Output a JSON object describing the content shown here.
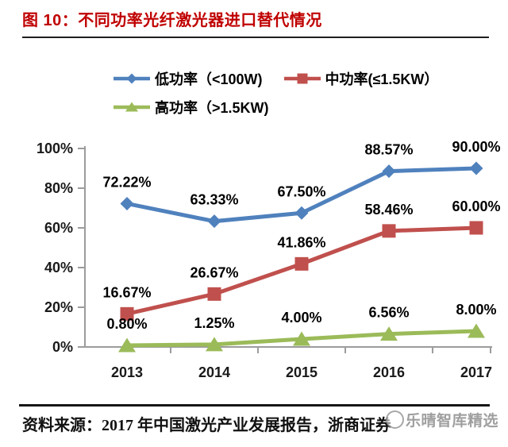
{
  "title": "图 10：不同功率光纤激光器进口替代情况",
  "source": "资料来源：2017 年中国激光产业发展报告，浙商证券",
  "watermark": "乐晴智库精选",
  "colors": {
    "title": "#C00000",
    "axis": "#9C9C9C",
    "data_label": "#000000",
    "watermark": "#8f8f8f"
  },
  "chart_data": {
    "type": "line",
    "title": "不同功率光纤激光器进口替代情况",
    "categories": [
      "2013",
      "2014",
      "2015",
      "2016",
      "2017"
    ],
    "series": [
      {
        "name": "低功率（<100W)",
        "marker": "diamond",
        "color": "#4F81BD",
        "values": [
          72.22,
          63.33,
          67.5,
          88.57,
          90.0
        ],
        "labels": [
          "72.22%",
          "63.33%",
          "67.50%",
          "88.57%",
          "90.00%"
        ]
      },
      {
        "name": "中功率(≤1.5KW）",
        "marker": "square",
        "color": "#C0504D",
        "values": [
          16.67,
          26.67,
          41.86,
          58.46,
          60.0
        ],
        "labels": [
          "16.67%",
          "26.67%",
          "41.86%",
          "58.46%",
          "60.00%"
        ]
      },
      {
        "name": "高功率（>1.5KW)",
        "marker": "triangle",
        "color": "#9BBB59",
        "values": [
          0.8,
          1.25,
          4.0,
          6.56,
          8.0
        ],
        "labels": [
          "0.80%",
          "1.25%",
          "4.00%",
          "6.56%",
          "8.00%"
        ]
      }
    ],
    "y_ticks": [
      "0%",
      "20%",
      "40%",
      "60%",
      "80%",
      "100%"
    ],
    "ylim": [
      0,
      100
    ],
    "grid": false,
    "legend_position": "top-left"
  }
}
